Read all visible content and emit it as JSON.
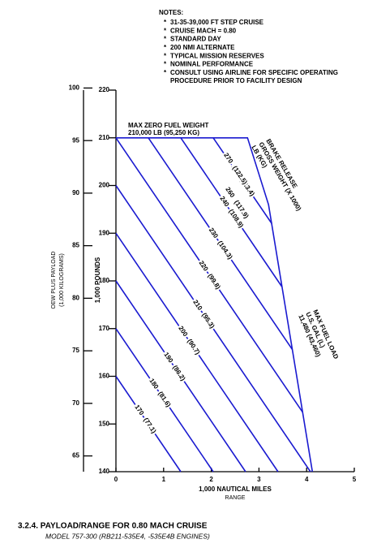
{
  "notes": {
    "title": "NOTES:",
    "items": [
      [
        "31-35-39,000 FT STEP CRUISE"
      ],
      [
        "CRUISE MACH = 0.80"
      ],
      [
        "STANDARD DAY"
      ],
      [
        "200 NMI ALTERNATE"
      ],
      [
        "TYPICAL MISSION RESERVES"
      ],
      [
        "NOMINAL PERFORMANCE"
      ],
      [
        "CONSULT USING AIRLINE FOR SPECIFIC OPERATING",
        "PROCEDURE PRIOR TO FACILITY DESIGN"
      ]
    ]
  },
  "caption": {
    "title": "3.2.4.  PAYLOAD/RANGE FOR 0.80 MACH CRUISE",
    "subtitle": "MODEL 757-300 (RB211-535E4, -535E4B ENGINES)"
  },
  "chart_data": {
    "type": "line",
    "x_label": "1,000 NAUTICAL MILES",
    "x_label2": "RANGE",
    "y_label": "1,000 POUNDS",
    "y2_label": "OEW PLUS PAYLOAD",
    "y2_label2": "(1,000 KILOGRAMS)",
    "xlim": [
      0,
      5
    ],
    "xticks": [
      0,
      1,
      2,
      3,
      4,
      5
    ],
    "ylim": [
      140,
      220
    ],
    "yticks": [
      140,
      150,
      160,
      170,
      180,
      190,
      200,
      210,
      220
    ],
    "y2lim": [
      63.5,
      99.8
    ],
    "y2ticks": [
      65,
      70,
      75,
      80,
      85,
      90,
      95,
      100
    ],
    "color": "#1a1ad0",
    "series": [
      {
        "name": "170",
        "kg": "(77.1)",
        "x": [
          0,
          1.36
        ],
        "values": [
          160,
          140
        ]
      },
      {
        "name": "180",
        "kg": "(81.6)",
        "x": [
          0,
          2.04
        ],
        "values": [
          170,
          140
        ]
      },
      {
        "name": "190",
        "kg": "(86.2)",
        "x": [
          0,
          2.72
        ],
        "values": [
          180,
          140
        ]
      },
      {
        "name": "200",
        "kg": "(90.7)",
        "x": [
          0,
          3.4
        ],
        "values": [
          190,
          140
        ]
      },
      {
        "name": "210",
        "kg": "(95.3)",
        "x": [
          0,
          4.08
        ],
        "values": [
          200,
          140
        ]
      },
      {
        "name": "220",
        "kg": "(99.8)",
        "x": [
          0,
          3.92
        ],
        "values": [
          210,
          152.4
        ]
      },
      {
        "name": "230",
        "kg": "(104.3)",
        "x": [
          0.68,
          3.7
        ],
        "values": [
          210,
          165.6
        ]
      },
      {
        "name": "240",
        "kg": "(108.9)",
        "x": [
          1.36,
          3.48
        ],
        "values": [
          210,
          178.8
        ]
      },
      {
        "name": "250",
        "kg": "(113.4)",
        "x": [
          2.04,
          3.27
        ],
        "values": [
          210,
          192
        ]
      }
    ],
    "envelope": {
      "x": [
        0,
        2.76,
        3.2,
        4.12
      ],
      "values": [
        210,
        210,
        196,
        140
      ]
    },
    "label_only": [
      {
        "name": "260",
        "kg": "(117.9)"
      },
      {
        "name": "270",
        "kg": "(122.5)"
      }
    ],
    "annotations": {
      "mzfw": [
        "MAX ZERO FUEL WEIGHT",
        "210,000 LB (95,250 KG)"
      ],
      "brake": [
        "BRAKE RELEASE",
        "GROSS WEIGHT (X 1000)",
        "LB     (KG)"
      ],
      "fuel": [
        "MAX FUEL LOAD",
        "U.S. GAL     (L)",
        "11,480   (43,460)"
      ]
    }
  }
}
